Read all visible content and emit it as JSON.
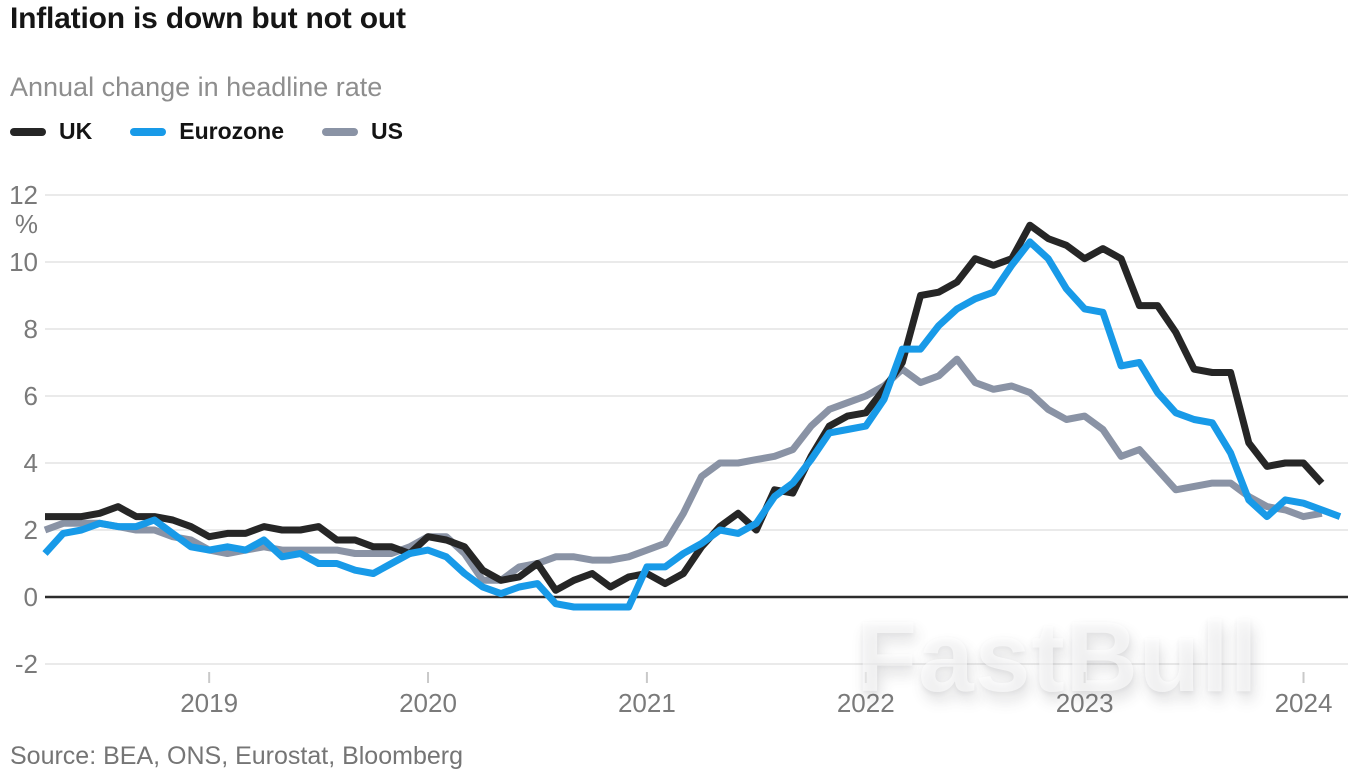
{
  "header": {
    "title": "Inflation is down but not out",
    "subtitle": "Annual change in headline rate"
  },
  "legend": [
    {
      "label": "UK",
      "color": "#262626"
    },
    {
      "label": "Eurozone",
      "color": "#189ae8"
    },
    {
      "label": "US",
      "color": "#8a93a5"
    }
  ],
  "source": "Source: BEA, ONS, Eurostat, Bloomberg",
  "watermark": "FastBull",
  "colors": {
    "uk_line": "#262626",
    "eurozone_line": "#189ae8",
    "us_line": "#8a93a5",
    "gridline": "#e4e4e4",
    "zero_line": "#2d2d2d",
    "axis_text": "#7a7a7a",
    "title_text": "#151515",
    "subtitle_text": "#8e8e8e"
  },
  "chart_data": {
    "type": "line",
    "title": "Inflation is down but not out",
    "subtitle": "Annual change in headline rate",
    "unit_label": "%",
    "frequency": "monthly",
    "x_start": "2018-04",
    "x_end": "2024-03",
    "x_tick_labels": [
      "2019",
      "2020",
      "2021",
      "2022",
      "2023",
      "2024"
    ],
    "x_year_tick_month_indices": [
      9,
      21,
      33,
      45,
      57,
      69
    ],
    "y_ticks": [
      -2,
      0,
      2,
      4,
      6,
      8,
      10,
      12
    ],
    "ylim": [
      -2.9,
      12.4
    ],
    "grid": "horizontal",
    "zero_line": true,
    "legend_position": "top-left",
    "series": [
      {
        "name": "UK",
        "color": "#262626",
        "values": [
          2.4,
          2.4,
          2.4,
          2.5,
          2.7,
          2.4,
          2.4,
          2.3,
          2.1,
          1.8,
          1.9,
          1.9,
          2.1,
          2.0,
          2.0,
          2.1,
          1.7,
          1.7,
          1.5,
          1.5,
          1.3,
          1.8,
          1.7,
          1.5,
          0.8,
          0.5,
          0.6,
          1.0,
          0.2,
          0.5,
          0.7,
          0.3,
          0.6,
          0.7,
          0.4,
          0.7,
          1.5,
          2.1,
          2.5,
          2.0,
          3.2,
          3.1,
          4.2,
          5.1,
          5.4,
          5.5,
          6.2,
          7.0,
          9.0,
          9.1,
          9.4,
          10.1,
          9.9,
          10.1,
          11.1,
          10.7,
          10.5,
          10.1,
          10.4,
          10.1,
          8.7,
          8.7,
          7.9,
          6.8,
          6.7,
          6.7,
          4.6,
          3.9,
          4.0,
          4.0,
          3.4,
          null
        ]
      },
      {
        "name": "Eurozone",
        "color": "#189ae8",
        "values": [
          1.3,
          1.9,
          2.0,
          2.2,
          2.1,
          2.1,
          2.3,
          1.9,
          1.5,
          1.4,
          1.5,
          1.4,
          1.7,
          1.2,
          1.3,
          1.0,
          1.0,
          0.8,
          0.7,
          1.0,
          1.3,
          1.4,
          1.2,
          0.7,
          0.3,
          0.1,
          0.3,
          0.4,
          -0.2,
          -0.3,
          -0.3,
          -0.3,
          -0.3,
          0.9,
          0.9,
          1.3,
          1.6,
          2.0,
          1.9,
          2.2,
          3.0,
          3.4,
          4.1,
          4.9,
          5.0,
          5.1,
          5.9,
          7.4,
          7.4,
          8.1,
          8.6,
          8.9,
          9.1,
          9.9,
          10.6,
          10.1,
          9.2,
          8.6,
          8.5,
          6.9,
          7.0,
          6.1,
          5.5,
          5.3,
          5.2,
          4.3,
          2.9,
          2.4,
          2.9,
          2.8,
          2.6,
          2.4
        ]
      },
      {
        "name": "US",
        "color": "#8a93a5",
        "values": [
          2.0,
          2.2,
          2.2,
          2.2,
          2.1,
          2.0,
          2.0,
          1.8,
          1.7,
          1.4,
          1.3,
          1.4,
          1.5,
          1.4,
          1.4,
          1.4,
          1.4,
          1.3,
          1.3,
          1.3,
          1.5,
          1.8,
          1.8,
          1.3,
          0.5,
          0.5,
          0.9,
          1.0,
          1.2,
          1.2,
          1.1,
          1.1,
          1.2,
          1.4,
          1.6,
          2.5,
          3.6,
          4.0,
          4.0,
          4.1,
          4.2,
          4.4,
          5.1,
          5.6,
          5.8,
          6.0,
          6.3,
          6.8,
          6.4,
          6.6,
          7.1,
          6.4,
          6.2,
          6.3,
          6.1,
          5.6,
          5.3,
          5.4,
          5.0,
          4.2,
          4.4,
          3.8,
          3.2,
          3.3,
          3.4,
          3.4,
          3.0,
          2.7,
          2.6,
          2.4,
          2.5,
          null
        ]
      }
    ]
  }
}
